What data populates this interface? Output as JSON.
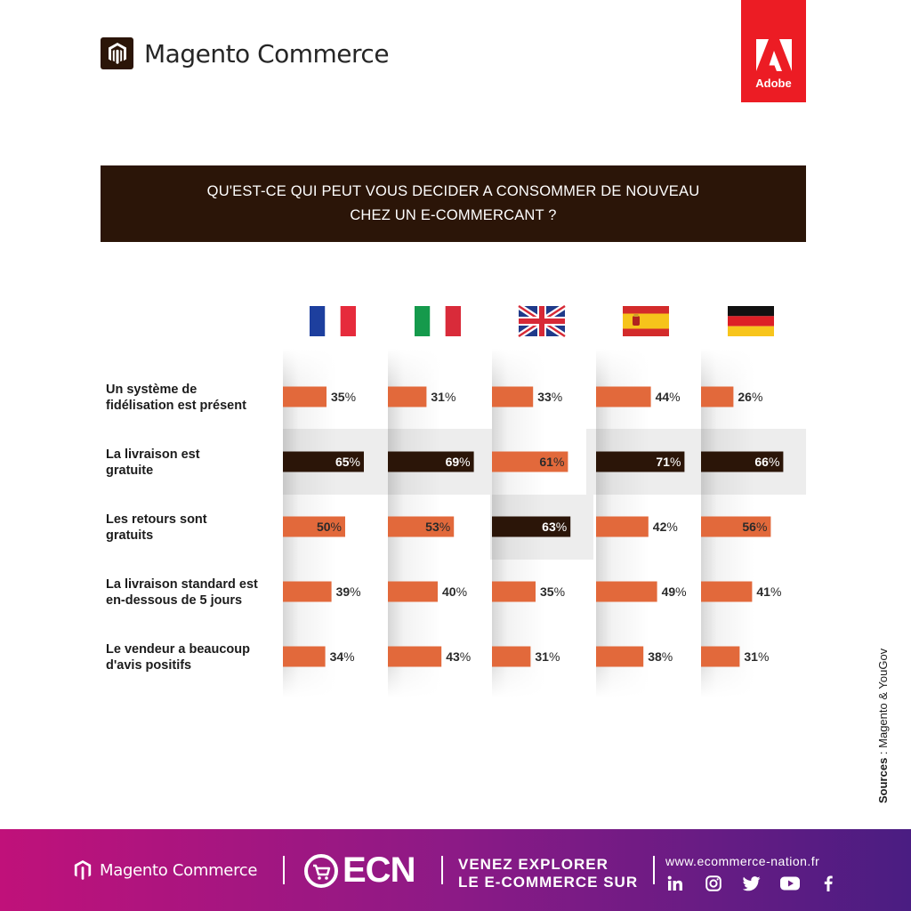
{
  "header": {
    "brand_name": "Magento Commerce",
    "adobe_label": "Adobe",
    "title": "QU'EST-CE QUI PEUT VOUS DECIDER A CONSOMMER DE NOUVEAU CHEZ UN E-COMMERCANT ?"
  },
  "colors": {
    "orange": "#e2693b",
    "dark": "#2b1508",
    "highlight": "#ededed"
  },
  "chart_data": {
    "type": "bar",
    "orientation": "horizontal",
    "title": "QU'EST-CE QUI PEUT VOUS DECIDER A CONSOMMER DE NOUVEAU CHEZ UN E-COMMERCANT ?",
    "unit": "%",
    "countries": [
      "france-flag",
      "italy-flag",
      "uk-flag",
      "spain-flag",
      "germany-flag"
    ],
    "categories": [
      "Un système de fidélisation est présent",
      "La livraison est gratuite",
      "Les retours sont gratuits",
      "La livraison standard est en-dessous de 5 jours",
      "Le vendeur a beaucoup d'avis positifs"
    ],
    "category_lines": [
      [
        "Un système de",
        "fidélisation est présent"
      ],
      [
        "La livraison est",
        "gratuite"
      ],
      [
        "Les retours sont",
        "gratuits"
      ],
      [
        "La livraison standard est",
        "en-dessous de 5 jours"
      ],
      [
        "Le vendeur a beaucoup",
        "d'avis positifs"
      ]
    ],
    "values": [
      [
        35,
        31,
        33,
        44,
        26
      ],
      [
        65,
        69,
        61,
        71,
        66
      ],
      [
        50,
        53,
        63,
        42,
        56
      ],
      [
        39,
        40,
        35,
        49,
        41
      ],
      [
        34,
        43,
        31,
        38,
        31
      ]
    ],
    "top_per_country": [
      1,
      1,
      2,
      1,
      1
    ],
    "ylim": [
      0,
      100
    ]
  },
  "sources": {
    "label": "Sources",
    "text": " : Magento & YouGov"
  },
  "footer": {
    "brand_name": "Magento Commerce",
    "ecn": "ECN",
    "slogan_line1": "VENEZ EXPLORER",
    "slogan_line2": "LE E-COMMERCE SUR",
    "url": "www.ecommerce-nation.fr",
    "social": [
      "linkedin-icon",
      "instagram-icon",
      "twitter-icon",
      "youtube-icon",
      "facebook-icon"
    ]
  }
}
